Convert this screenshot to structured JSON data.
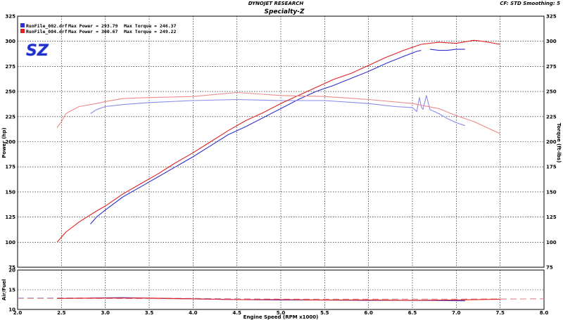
{
  "header": {
    "company": "DYNOJET RESEARCH",
    "title": "Specialty-Z",
    "settings": "CF: STD  Smoothing: 5"
  },
  "logo": {
    "text": "SZ",
    "color": "#2030c8"
  },
  "legend": [
    {
      "file": "RunFile_002.drf",
      "max_power_label": "Max Power = 293.79",
      "max_torque_label": "Max Torque = 246.37",
      "color": "#3030d0"
    },
    {
      "file": "RunFile_004.drf",
      "max_power_label": "Max Power = 300.67",
      "max_torque_label": "Max Torque = 249.22",
      "color": "#e02020"
    }
  ],
  "chart_data": [
    {
      "type": "line",
      "xlabel": "Engine Speed (RPM x1000)",
      "ylabel": "Power (hp)",
      "y2label": "Torque (ft-lbs)",
      "xlim": [
        2.0,
        8.0
      ],
      "ylim": [
        75,
        325
      ],
      "y2lim": [
        75,
        325
      ],
      "xticks": [
        "2.0",
        "2.5",
        "3.0",
        "3.5",
        "4.0",
        "4.5",
        "5.0",
        "5.5",
        "6.0",
        "6.5",
        "7.0",
        "7.5",
        "8.0"
      ],
      "yticks": [
        "75",
        "100",
        "125",
        "150",
        "175",
        "200",
        "225",
        "250",
        "275",
        "300",
        "325"
      ],
      "grid": true,
      "series": [
        {
          "name": "RunFile_002.drf",
          "quantity": "power",
          "color": "#3030d0",
          "x": [
            2.83,
            2.9,
            3.0,
            3.2,
            3.4,
            3.6,
            3.8,
            4.0,
            4.2,
            4.4,
            4.6,
            4.8,
            5.0,
            5.2,
            5.4,
            5.6,
            5.8,
            6.0,
            6.2,
            6.4,
            6.55,
            6.6
          ],
          "y": [
            118,
            125,
            132,
            145,
            155,
            165,
            175,
            185,
            196,
            207,
            215,
            224,
            233,
            242,
            250,
            256,
            263,
            270,
            278,
            285,
            290,
            291
          ]
        },
        {
          "name": "RunFile_002.drf",
          "quantity": "power",
          "color": "#3030d0",
          "x": [
            6.7,
            6.8,
            6.9,
            7.0,
            7.1
          ],
          "y": [
            292,
            291,
            291,
            292,
            292
          ]
        },
        {
          "name": "RunFile_002.drf",
          "quantity": "torque",
          "color": "#8a8ae8",
          "x": [
            2.83,
            2.9,
            3.0,
            3.2,
            3.5,
            4.0,
            4.5,
            5.0,
            5.5,
            6.0,
            6.3,
            6.5,
            6.55,
            6.58,
            6.6,
            6.62
          ],
          "y": [
            228,
            232,
            235,
            237,
            239,
            241,
            242,
            241,
            241,
            238,
            235,
            234,
            230,
            244,
            235,
            232
          ]
        },
        {
          "name": "RunFile_002.drf",
          "quantity": "torque",
          "color": "#8a8ae8",
          "x": [
            6.62,
            6.66,
            6.7,
            6.8,
            6.9,
            7.0,
            7.1
          ],
          "y": [
            232,
            246,
            232,
            228,
            223,
            219,
            216
          ]
        },
        {
          "name": "RunFile_004.drf",
          "quantity": "power",
          "color": "#e02020",
          "x": [
            2.45,
            2.55,
            2.7,
            2.9,
            3.0,
            3.2,
            3.4,
            3.6,
            3.8,
            4.0,
            4.2,
            4.4,
            4.6,
            4.8,
            5.0,
            5.2,
            5.4,
            5.6,
            5.8,
            6.0,
            6.2,
            6.4,
            6.6,
            6.8,
            7.0,
            7.2,
            7.3,
            7.5
          ],
          "y": [
            100,
            110,
            120,
            131,
            136,
            148,
            158,
            168,
            179,
            189,
            200,
            211,
            221,
            229,
            238,
            246,
            254,
            262,
            268,
            276,
            284,
            291,
            297,
            299,
            298,
            301,
            300,
            297
          ]
        },
        {
          "name": "RunFile_004.drf",
          "quantity": "torque",
          "color": "#ee8a8a",
          "x": [
            2.45,
            2.5,
            2.55,
            2.7,
            2.9,
            3.0,
            3.2,
            3.5,
            4.0,
            4.5,
            5.0,
            5.5,
            6.0,
            6.5,
            6.8,
            7.0,
            7.2,
            7.5
          ],
          "y": [
            214,
            220,
            228,
            235,
            238,
            240,
            243,
            244,
            245,
            249,
            246,
            245,
            242,
            238,
            233,
            226,
            220,
            208
          ]
        }
      ]
    },
    {
      "type": "line",
      "xlabel": "Engine Speed (RPM x1000)",
      "ylabel": "Air/Fuel",
      "xlim": [
        2.0,
        8.0
      ],
      "ylim": [
        10,
        20
      ],
      "yticks": [
        "10",
        "15",
        "20"
      ],
      "grid": true,
      "series": [
        {
          "name": "RunFile_002.drf",
          "quantity": "afr",
          "color": "#8a8ae8",
          "dashed": true,
          "x": [
            2.0,
            3.0,
            4.0,
            5.0,
            6.0,
            7.0,
            8.0
          ],
          "y": [
            12.9,
            12.9,
            12.8,
            12.6,
            12.6,
            12.6,
            12.7
          ]
        },
        {
          "name": "RunFile_002.drf",
          "quantity": "afr",
          "color": "#3030d0",
          "x": [
            2.83,
            3.2,
            3.6,
            4.0,
            4.5,
            5.0,
            5.5,
            6.0,
            6.5,
            7.1
          ],
          "y": [
            12.9,
            13.0,
            12.8,
            12.7,
            12.5,
            12.4,
            12.4,
            12.3,
            12.3,
            12.2
          ]
        },
        {
          "name": "RunFile_004.drf",
          "quantity": "afr",
          "color": "#ee8a8a",
          "dashed": true,
          "x": [
            2.0,
            3.0,
            4.0,
            5.0,
            6.0,
            7.0,
            8.0
          ],
          "y": [
            12.8,
            12.8,
            12.7,
            12.6,
            12.6,
            12.6,
            12.7
          ]
        },
        {
          "name": "RunFile_004.drf",
          "quantity": "afr",
          "color": "#e02020",
          "x": [
            2.45,
            3.0,
            3.5,
            4.0,
            4.5,
            5.0,
            5.5,
            6.0,
            6.5,
            7.0,
            7.5
          ],
          "y": [
            12.8,
            12.9,
            12.9,
            12.7,
            12.5,
            12.5,
            12.4,
            12.4,
            12.3,
            12.4,
            12.6
          ]
        }
      ]
    }
  ]
}
